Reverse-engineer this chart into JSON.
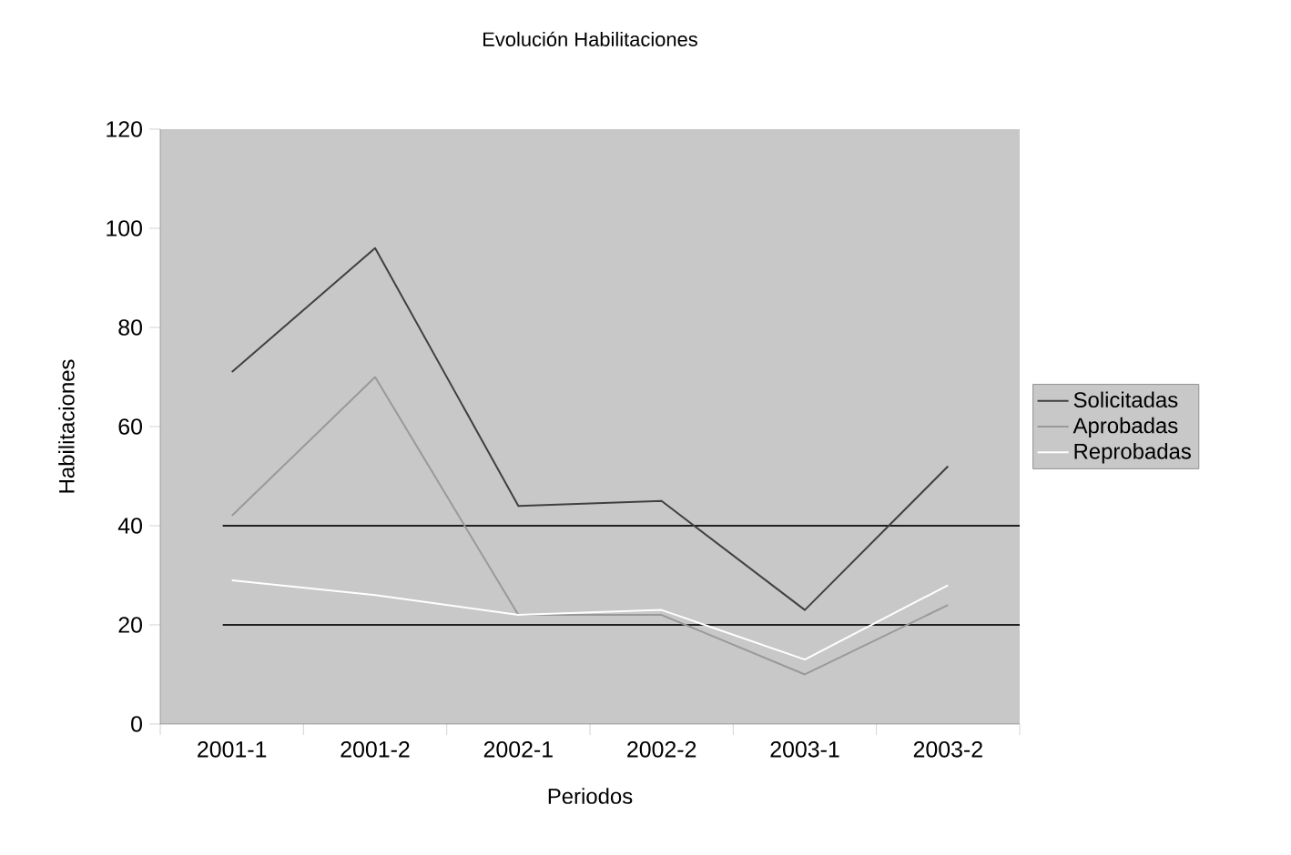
{
  "chart_data": {
    "type": "line",
    "title": "Evolución Habilitaciones",
    "xlabel": "Periodos",
    "ylabel": "Habilitaciones",
    "categories": [
      "2001-1",
      "2001-2",
      "2002-1",
      "2002-2",
      "2003-1",
      "2003-2"
    ],
    "series": [
      {
        "name": "Solicitadas",
        "color": "#404040",
        "values": [
          71,
          96,
          44,
          45,
          23,
          52
        ]
      },
      {
        "name": "Aprobadas",
        "color": "#999999",
        "values": [
          42,
          70,
          22,
          22,
          10,
          24
        ]
      },
      {
        "name": "Reprobadas",
        "color": "#ffffff",
        "values": [
          29,
          26,
          22,
          23,
          13,
          28
        ]
      }
    ],
    "ylim": [
      0,
      120
    ],
    "yticks": [
      0,
      20,
      40,
      60,
      80,
      100,
      120
    ],
    "ref_lines": [
      {
        "axis": "y",
        "value": 20,
        "color": "#202020"
      },
      {
        "axis": "y",
        "value": 40,
        "color": "#202020"
      }
    ],
    "legend": "right",
    "marker": "none",
    "line_style": "solid"
  }
}
